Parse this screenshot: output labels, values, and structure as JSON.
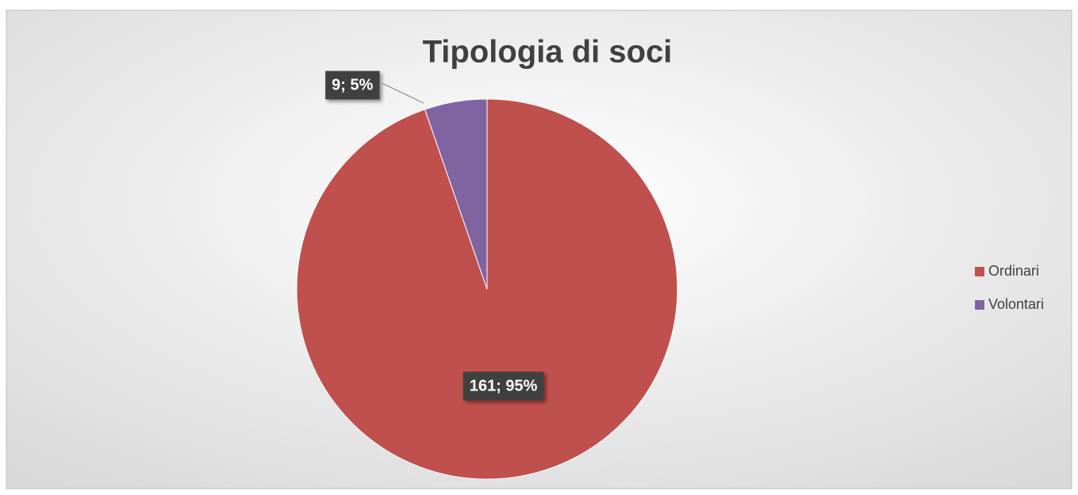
{
  "chart_data": {
    "type": "pie",
    "title": "Tipologia di soci",
    "categories": [
      "Ordinari",
      "Volontari"
    ],
    "values": [
      161,
      9
    ],
    "value_labels": [
      "161; 95%",
      "9; 5%"
    ],
    "colors": [
      "#c0504d",
      "#8064a2"
    ],
    "legend": "right"
  }
}
